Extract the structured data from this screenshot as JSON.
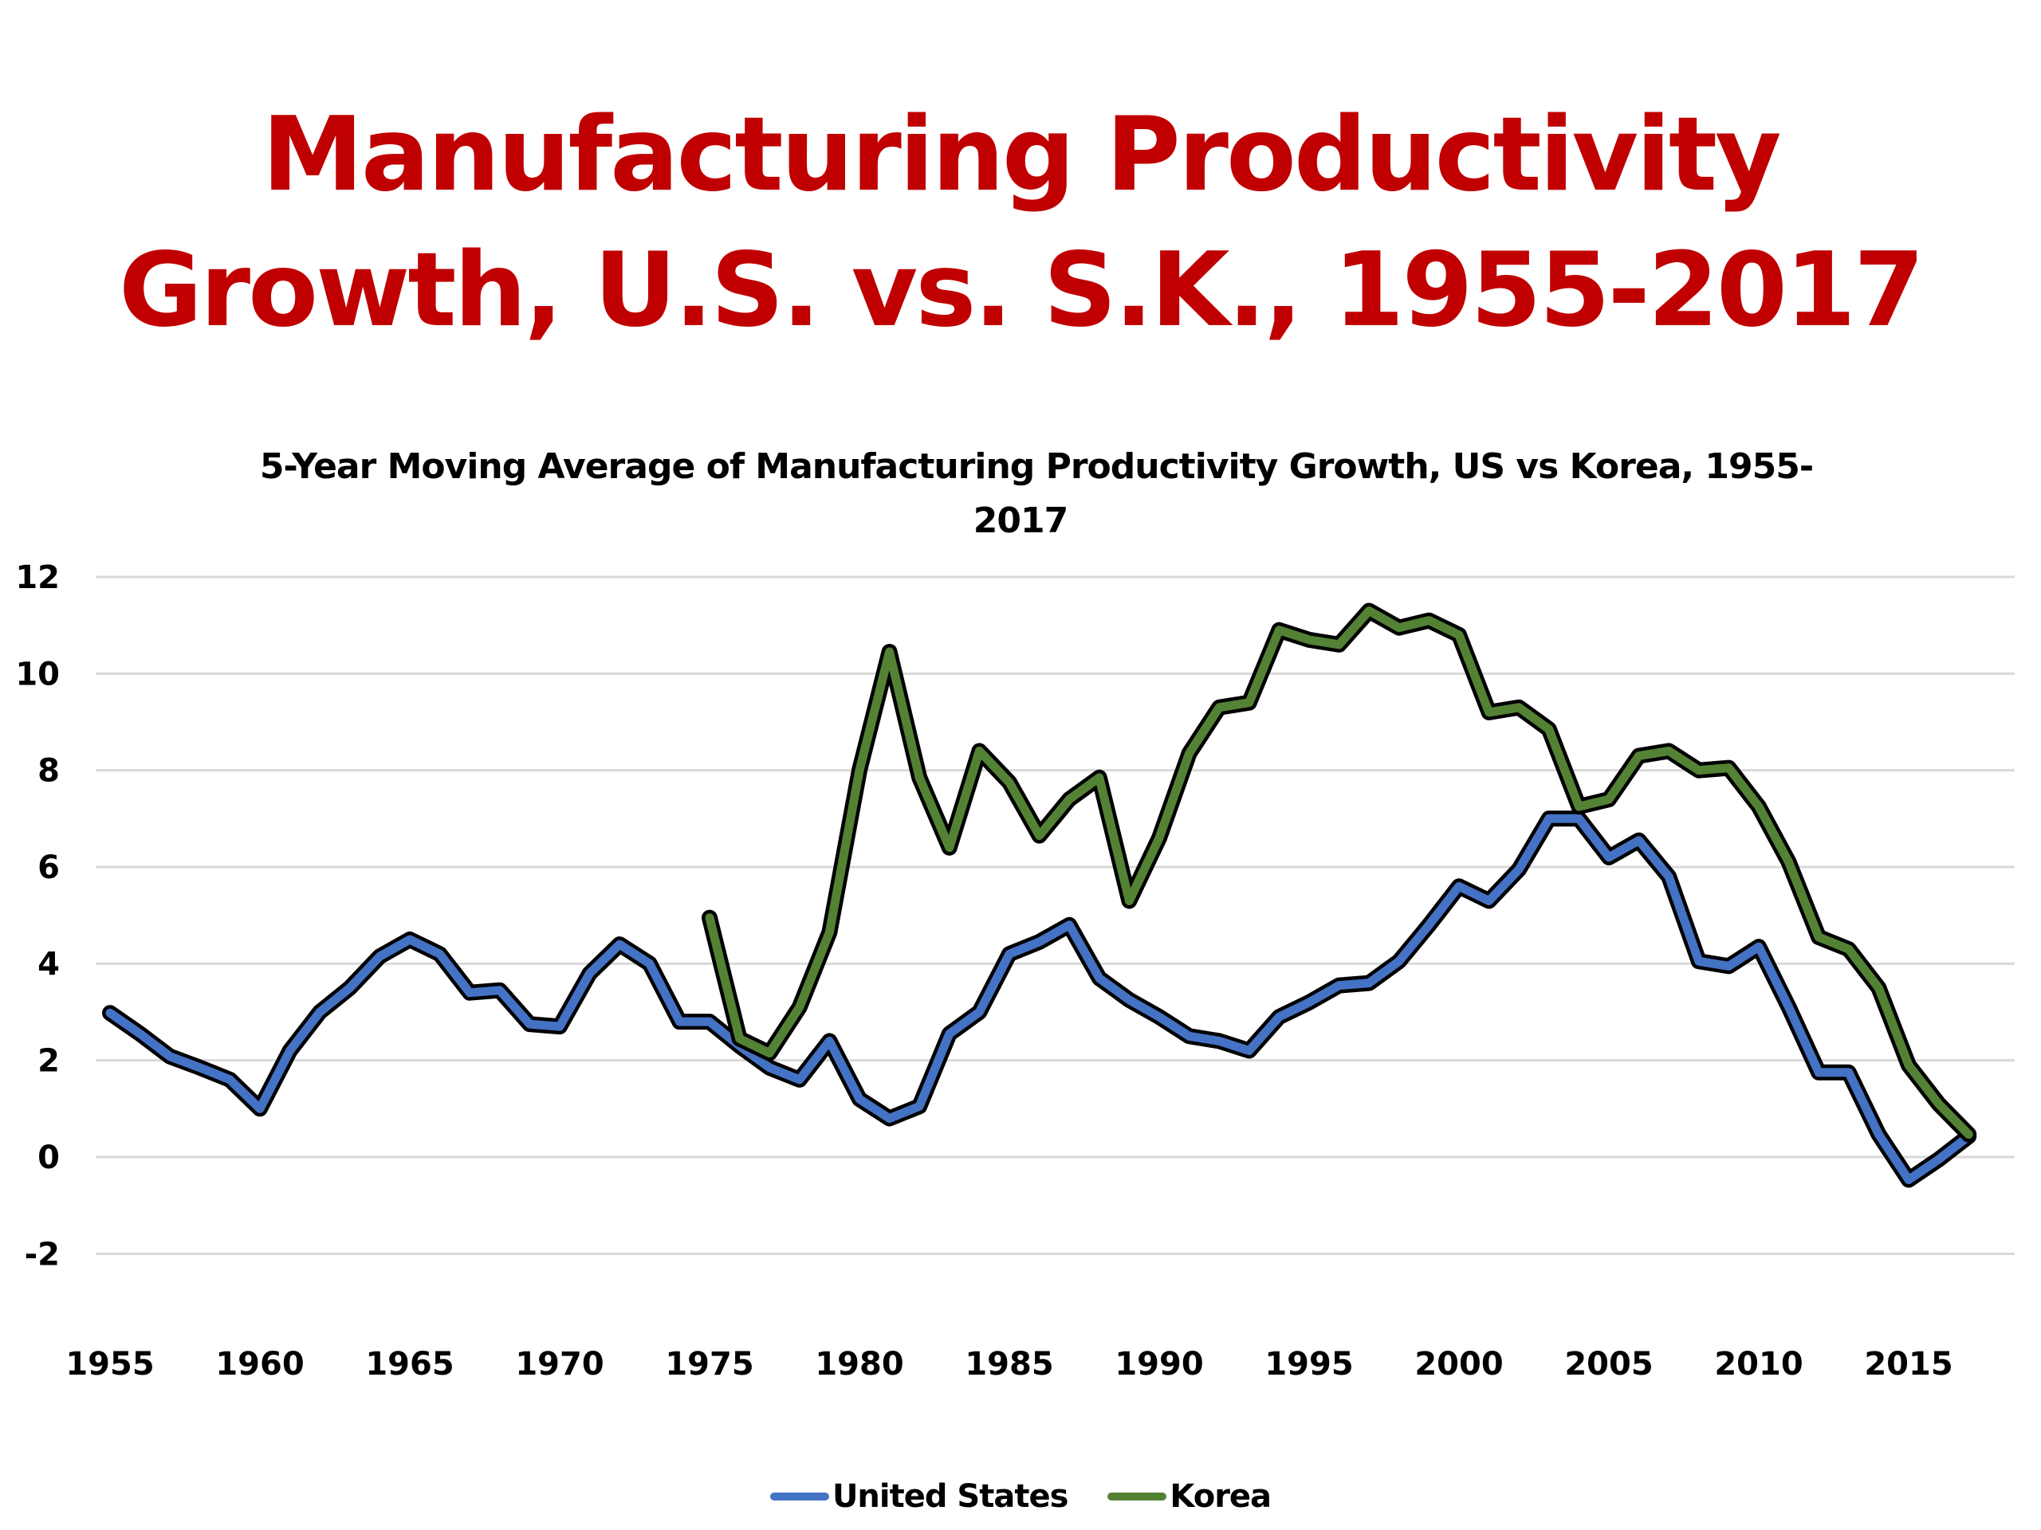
{
  "page": {
    "title_line1": "Manufacturing Productivity",
    "title_line2": "Growth, U.S. vs. S.K., 1955-2017"
  },
  "chart_data": {
    "type": "line",
    "title_line1": "5-Year Moving Average of Manufacturing Productivity Growth, US vs Korea, 1955-",
    "title_line2": "2017",
    "xlabel": "",
    "ylabel": "",
    "ylim": [
      -2,
      12
    ],
    "xlim": [
      1955,
      2017
    ],
    "y_ticks": [
      12,
      10,
      8,
      6,
      4,
      2,
      0,
      -2
    ],
    "x_ticks": [
      1955,
      1960,
      1965,
      1970,
      1975,
      1980,
      1985,
      1990,
      1995,
      2000,
      2005,
      2010,
      2015
    ],
    "grid": true,
    "legend_position": "bottom",
    "series": [
      {
        "name": "United States",
        "color": "#4472c4",
        "x_start": 1955,
        "values": [
          2.98,
          2.55,
          2.08,
          1.85,
          1.6,
          1.0,
          2.2,
          3.0,
          3.5,
          4.15,
          4.5,
          4.2,
          3.4,
          3.45,
          2.75,
          2.7,
          3.8,
          4.4,
          4.0,
          2.8,
          2.8,
          2.3,
          1.85,
          1.6,
          2.4,
          1.2,
          0.8,
          1.05,
          2.55,
          3.0,
          4.2,
          4.45,
          4.8,
          3.7,
          3.25,
          2.9,
          2.5,
          2.4,
          2.2,
          2.9,
          3.2,
          3.55,
          3.6,
          4.05,
          4.8,
          5.6,
          5.3,
          5.95,
          7.0,
          7.0,
          6.2,
          6.55,
          5.8,
          4.05,
          3.95,
          4.35,
          3.1,
          1.75,
          1.75,
          0.47,
          -0.47,
          -0.05,
          0.43
        ]
      },
      {
        "name": "Korea",
        "color": "#548235",
        "x_start": 1975,
        "values": [
          4.95,
          2.45,
          2.15,
          3.1,
          4.65,
          8.0,
          10.45,
          7.85,
          6.4,
          8.4,
          7.75,
          6.65,
          7.4,
          7.85,
          5.3,
          6.6,
          8.35,
          9.3,
          9.4,
          10.9,
          10.7,
          10.6,
          11.3,
          10.95,
          11.1,
          10.8,
          9.2,
          9.3,
          8.85,
          7.25,
          7.4,
          8.3,
          8.4,
          8.0,
          8.05,
          7.25,
          6.1,
          4.55,
          4.3,
          3.5,
          1.9,
          1.1,
          0.47
        ]
      }
    ]
  }
}
